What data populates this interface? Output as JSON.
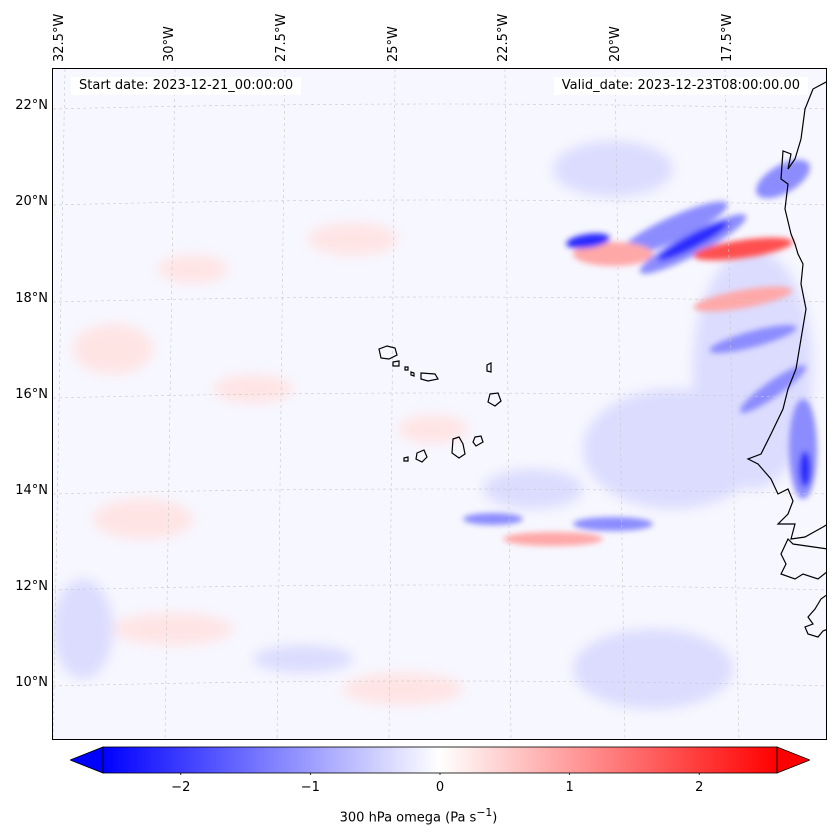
{
  "map": {
    "start_label": "Start date: 2023-12-21_00:00:00",
    "valid_label": "Valid_date: 2023-12-23T08:00:00.00",
    "lon_ticks": [
      "32.5°W",
      "30°W",
      "27.5°W",
      "25°W",
      "22.5°W",
      "20°W",
      "17.5°W"
    ],
    "lat_ticks": [
      "22°N",
      "20°N",
      "18°N",
      "16°N",
      "14°N",
      "12°N",
      "10°N"
    ],
    "field_colors": {
      "strong_neg": "#2a2aff",
      "mid_neg": "#8c8cff",
      "weak_neg": "#dcdcff",
      "near_zero": "#f7f7ff",
      "weak_pos": "#ffe4e4",
      "mid_pos": "#ffa8a8",
      "strong_pos": "#ff5050"
    },
    "coastline_color": "#000000",
    "grid_color": "#c8c8c8"
  },
  "colorbar": {
    "label_prefix": "300 hPa omega (Pa s",
    "label_sup": "−1",
    "label_suffix": ")",
    "ticks": [
      "−2",
      "−1",
      "0",
      "1",
      "2"
    ],
    "min": -2.6,
    "max": 2.6,
    "min_color": "#0000ff",
    "mid_color": "#ffffff",
    "max_color": "#ff0000"
  }
}
